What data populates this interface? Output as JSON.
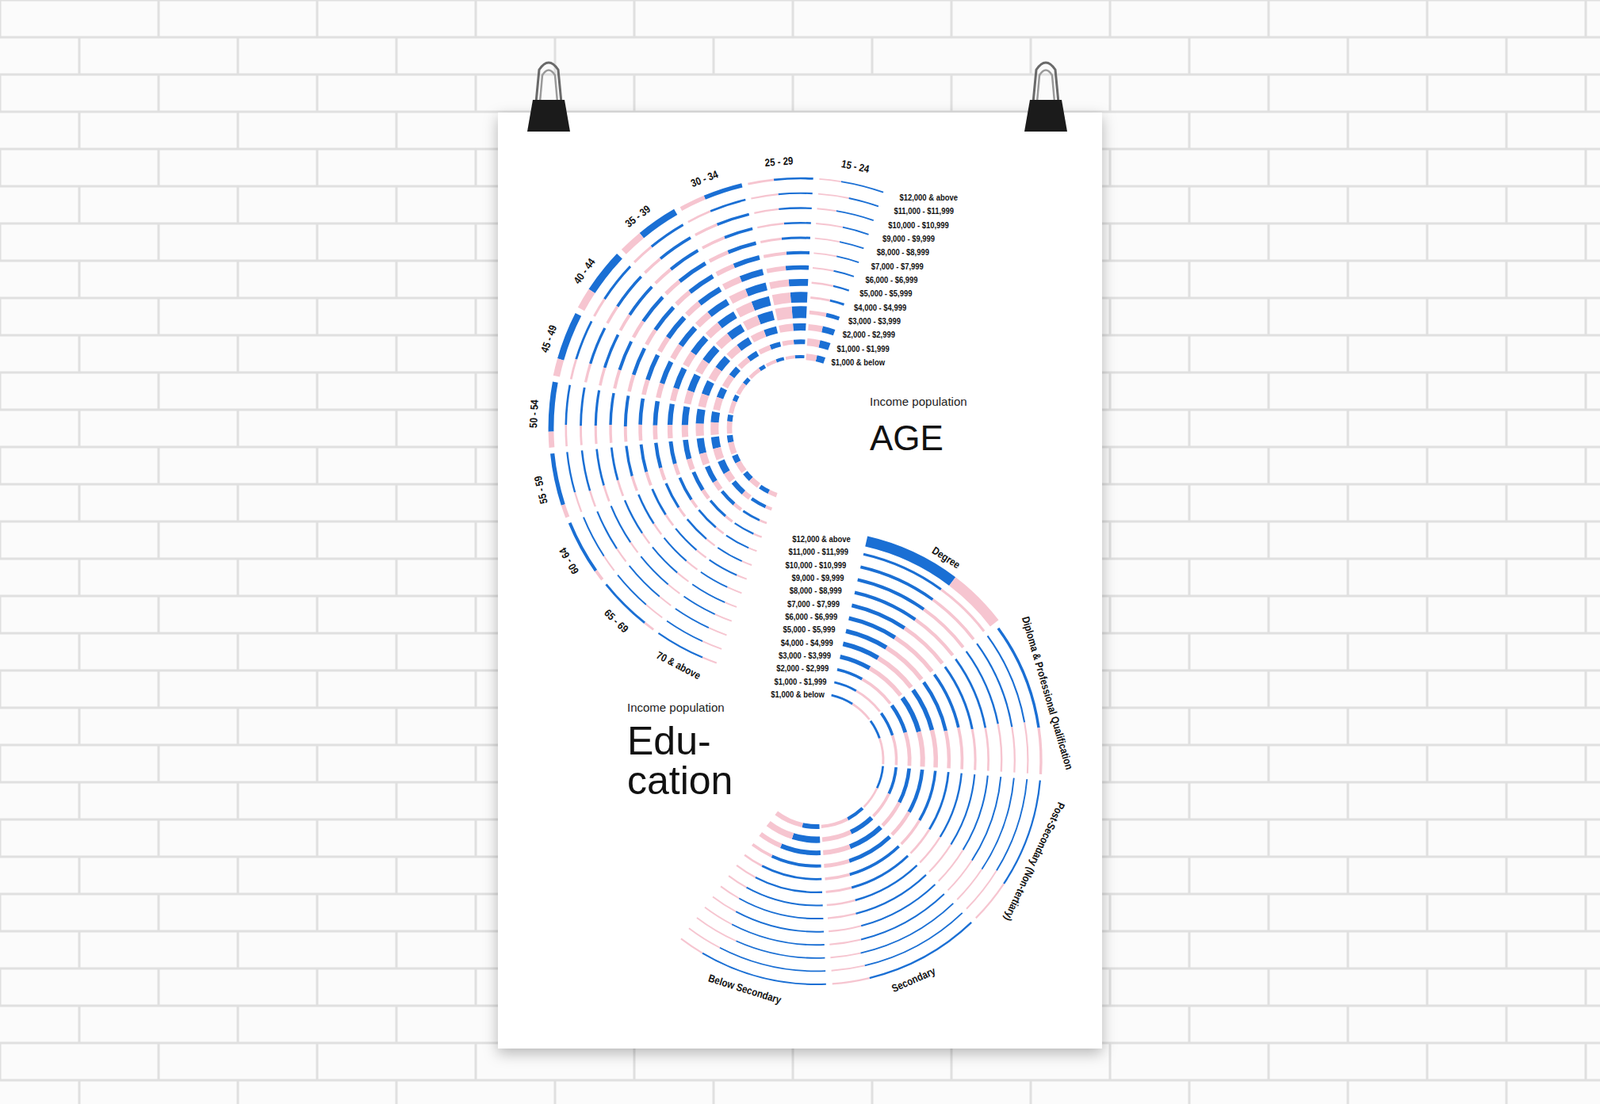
{
  "chart_data": [
    {
      "type": "radial_bar",
      "subtitle": "Income population",
      "title": "AGE",
      "categories": [
        "15 - 24",
        "25 - 29",
        "30 - 34",
        "35 - 39",
        "40 - 44",
        "45 - 49",
        "50 - 54",
        "55 - 59",
        "60 - 64",
        "65 - 69",
        "70 & above"
      ],
      "income_bands": [
        "$1,000 & below",
        "$1,000 - $1,999",
        "$2,000 - $2,999",
        "$3,000 - $3,999",
        "$4,000 - $4,999",
        "$5,000 - $5,999",
        "$6,000 - $6,999",
        "$7,000 - $7,999",
        "$8,000 - $8,999",
        "$9,000 - $9,999",
        "$10,000 - $10,999",
        "$11,000 - $11,999",
        "$12,000 & above"
      ],
      "series": [
        {
          "color": "#1a6fd4",
          "values": [
            [
              8,
              10,
              8,
              4,
              1.5,
              0.6,
              0.3,
              0.2,
              0.1,
              0.1,
              0.1,
              0.05,
              0.2
            ],
            [
              3,
              6,
              10,
              18,
              16,
              10,
              6,
              3,
              2,
              1,
              0.8,
              0.5,
              1.5
            ],
            [
              3,
              6,
              10,
              15,
              15,
              13,
              10,
              7,
              5,
              3,
              2.5,
              1.5,
              6
            ],
            [
              3,
              7,
              11,
              13,
              12,
              11,
              9,
              7,
              6,
              4,
              3.5,
              2.5,
              12
            ],
            [
              4,
              8,
              12,
              13,
              11,
              9,
              8,
              6,
              5,
              4,
              3.5,
              2.5,
              15
            ],
            [
              4,
              9,
              12,
              12,
              10,
              8,
              7,
              5,
              4,
              3.5,
              3,
              2,
              14
            ],
            [
              5,
              11,
              13,
              11,
              8,
              7,
              5,
              4,
              3,
              2.5,
              2,
              1.5,
              11
            ],
            [
              6,
              12,
              12,
              9,
              6,
              5,
              4,
              3,
              2,
              1.8,
              1.5,
              1,
              8
            ],
            [
              7,
              12,
              9,
              6,
              4,
              3,
              2,
              1.5,
              1.2,
              1,
              0.8,
              0.5,
              5
            ],
            [
              7,
              9,
              5,
              3,
              2,
              1.3,
              1,
              0.7,
              0.5,
              0.4,
              0.3,
              0.2,
              2.5
            ],
            [
              6,
              5,
              2,
              1,
              0.6,
              0.4,
              0.3,
              0.2,
              0.15,
              0.1,
              0.1,
              0.1,
              1
            ]
          ]
        },
        {
          "color": "#f6c5d0",
          "values": [
            [
              10,
              12,
              9,
              5,
              2,
              0.8,
              0.3,
              0.2,
              0.1,
              0.1,
              0.05,
              0.05,
              0.1
            ],
            [
              3,
              6,
              11,
              20,
              17,
              10,
              5,
              3,
              1.5,
              1,
              0.6,
              0.4,
              1
            ],
            [
              4,
              7,
              11,
              15,
              14,
              11,
              8,
              5,
              3.5,
              2.5,
              1.8,
              1,
              4
            ],
            [
              6,
              8,
              11,
              12,
              10,
              8,
              6,
              4.5,
              3.5,
              2.5,
              2,
              1.5,
              7
            ],
            [
              7,
              10,
              11,
              10,
              8,
              6,
              5,
              3.5,
              3,
              2,
              1.8,
              1.2,
              7
            ],
            [
              8,
              11,
              11,
              9,
              6,
              5,
              4,
              3,
              2.5,
              1.8,
              1.5,
              1,
              5
            ],
            [
              9,
              13,
              11,
              7,
              5,
              4,
              3,
              2,
              1.7,
              1.3,
              1,
              0.8,
              3.5
            ],
            [
              10,
              12,
              9,
              5,
              3,
              2.5,
              2,
              1.5,
              1,
              0.8,
              0.6,
              0.5,
              2
            ],
            [
              10,
              9,
              5,
              3,
              1.5,
              1.2,
              0.9,
              0.6,
              0.4,
              0.3,
              0.3,
              0.2,
              1
            ],
            [
              8,
              5,
              2.5,
              1.2,
              0.8,
              0.5,
              0.4,
              0.3,
              0.2,
              0.15,
              0.1,
              0.1,
              0.5
            ],
            [
              5,
              2,
              0.8,
              0.4,
              0.2,
              0.15,
              0.1,
              0.1,
              0.05,
              0.05,
              0.05,
              0.05,
              0.3
            ]
          ]
        }
      ]
    },
    {
      "type": "radial_bar",
      "subtitle": "Income population",
      "title": [
        "Edu-",
        "cation"
      ],
      "categories": [
        "Degree",
        "Diploma & Professional Qualification",
        "Post-Secondary (Non-tertiary)",
        "Secondary",
        "Below Secondary"
      ],
      "income_bands": [
        "$1,000 & below",
        "$1,000 - $1,999",
        "$2,000 - $2,999",
        "$3,000 - $3,999",
        "$4,000 - $4,999",
        "$5,000 - $5,999",
        "$6,000 - $6,999",
        "$7,000 - $7,999",
        "$8,000 - $8,999",
        "$9,000 - $9,999",
        "$10,000 - $10,999",
        "$11,000 - $11,999",
        "$12,000 & above"
      ],
      "series": [
        {
          "color": "#1a6fd4",
          "values": [
            [
              3,
              3,
              5,
              10,
              12,
              12,
              11,
              10,
              9,
              8,
              7,
              5,
              45
            ],
            [
              3,
              5,
              9,
              14,
              13,
              10,
              7,
              5,
              3.5,
              2.5,
              2,
              1.3,
              7
            ],
            [
              3,
              6,
              10,
              11,
              7,
              4,
              2.5,
              1.5,
              1,
              0.7,
              0.5,
              0.3,
              2
            ],
            [
              6,
              12,
              16,
              13,
              8,
              5,
              3,
              2,
              1.3,
              0.9,
              0.7,
              0.5,
              2.5
            ],
            [
              10,
              20,
              17,
              9,
              4.5,
              2.5,
              1.5,
              0.8,
              0.5,
              0.3,
              0.2,
              0.15,
              1.5
            ]
          ]
        },
        {
          "color": "#f6c5d0",
          "values": [
            [
              3,
              4,
              7,
              13,
              14,
              13,
              11,
              9,
              7,
              6,
              5,
              3.5,
              28
            ],
            [
              4,
              6,
              10,
              13,
              11,
              7,
              5,
              3,
              2,
              1.5,
              1,
              0.7,
              3
            ],
            [
              3,
              6,
              8,
              7,
              4,
              2,
              1.2,
              0.7,
              0.5,
              0.3,
              0.2,
              0.15,
              0.8
            ],
            [
              9,
              14,
              12,
              7,
              3.5,
              2,
              1.2,
              0.7,
              0.5,
              0.3,
              0.2,
              0.15,
              0.8
            ],
            [
              17,
              20,
              10,
              4,
              1.5,
              0.8,
              0.4,
              0.2,
              0.15,
              0.1,
              0.1,
              0.05,
              0.3
            ]
          ]
        }
      ]
    }
  ]
}
